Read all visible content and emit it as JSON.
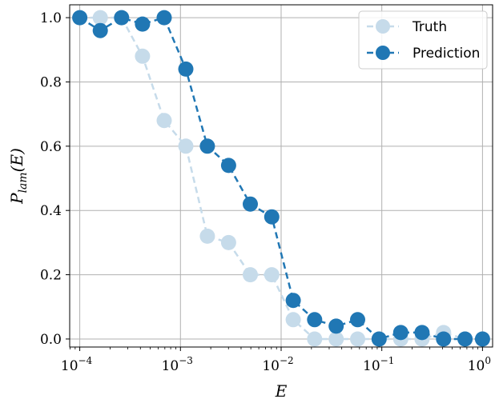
{
  "chart_data": {
    "type": "line",
    "xscale": "log",
    "x": [
      0.0001,
      0.00016,
      0.00026,
      0.00042,
      0.00069,
      0.00113,
      0.00185,
      0.00301,
      0.00494,
      0.00807,
      0.0132,
      0.0215,
      0.0352,
      0.0575,
      0.094,
      0.154,
      0.251,
      0.411,
      0.671,
      1.0
    ],
    "series": [
      {
        "name": "Truth",
        "color": "#c6dbea",
        "style": "dashed",
        "values": [
          1.0,
          1.0,
          1.0,
          0.88,
          0.68,
          0.6,
          0.32,
          0.3,
          0.2,
          0.2,
          0.06,
          0.0,
          0.0,
          0.0,
          0.0,
          0.0,
          0.0,
          0.02,
          0.0,
          0.0
        ]
      },
      {
        "name": "Prediction",
        "color": "#2077b4",
        "style": "dashed",
        "values": [
          1.0,
          0.96,
          1.0,
          0.98,
          1.0,
          0.84,
          0.6,
          0.54,
          0.42,
          0.38,
          0.12,
          0.06,
          0.04,
          0.06,
          0.0,
          0.02,
          0.02,
          0.0,
          0.0,
          0.0
        ]
      }
    ],
    "xlabel": "E",
    "ylabel": "P_lam(E)",
    "ylim": [
      -0.025,
      1.04
    ],
    "xlim": [
      7.94e-05,
      1.26
    ],
    "yticks": [
      0.0,
      0.2,
      0.4,
      0.6,
      0.8,
      1.0
    ],
    "ytick_labels": [
      "0.0",
      "0.2",
      "0.4",
      "0.6",
      "0.8",
      "1.0"
    ],
    "xtick_exponents": [
      "−4",
      "−3",
      "−2",
      "−1",
      "0"
    ],
    "grid": true,
    "legend_position": "top-right"
  }
}
